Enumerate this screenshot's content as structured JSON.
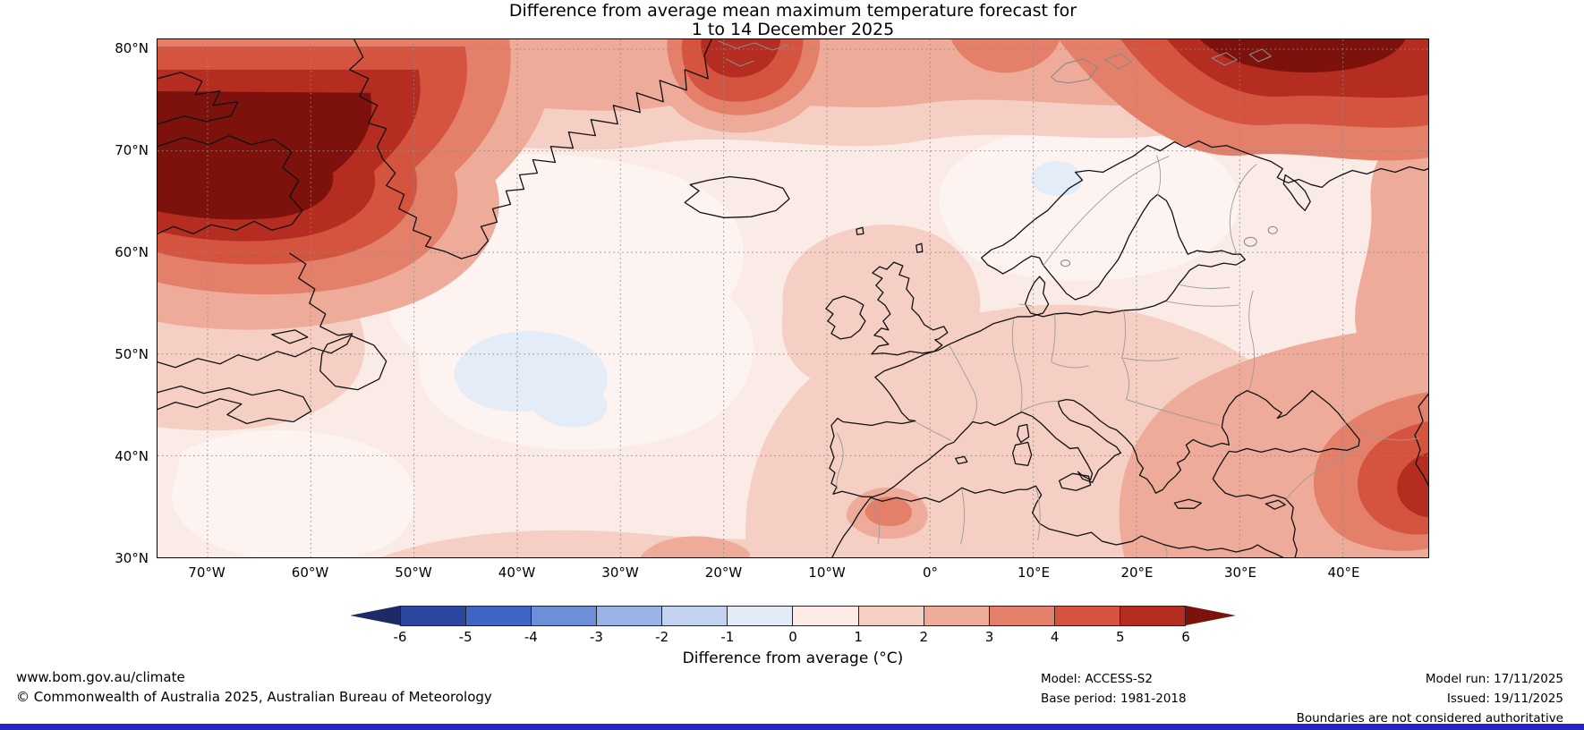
{
  "title": {
    "line1": "Difference from average mean maximum temperature forecast for",
    "line2": "1 to 14 December 2025"
  },
  "axes": {
    "lat": [
      "80°N",
      "70°N",
      "60°N",
      "50°N",
      "40°N",
      "30°N"
    ],
    "lon": [
      "70°W",
      "60°W",
      "50°W",
      "40°W",
      "30°W",
      "20°W",
      "10°W",
      "0°",
      "10°E",
      "20°E",
      "30°E",
      "40°E"
    ]
  },
  "colorbar": {
    "label": "Difference from average (°C)",
    "ticks": [
      "-6",
      "-5",
      "-4",
      "-3",
      "-2",
      "-1",
      "0",
      "1",
      "2",
      "3",
      "4",
      "5",
      "6"
    ],
    "left_arrow_color": "#1d2a66",
    "right_arrow_color": "#7d120c",
    "segment_colors": [
      "#2c47a0",
      "#3f66c4",
      "#6c8fd8",
      "#9ab3e6",
      "#c3d2f0",
      "#e4ebf8",
      "#fbeae5",
      "#f5cfc3",
      "#eeab9a",
      "#e4806a",
      "#d5543f",
      "#b52c20"
    ]
  },
  "footer": {
    "site": "www.bom.gov.au/climate",
    "copyright": "© Commonwealth of Australia 2025, Australian Bureau of Meteorology",
    "model": "Model: ACCESS-S2",
    "base_period": "Base period: 1981-2018",
    "model_run": "Model run: 17/11/2025",
    "issued": "Issued: 19/11/2025",
    "disclaimer": "Boundaries are not considered authoritative"
  },
  "chart_data": {
    "type": "heatmap",
    "subtype": "filled_contour_map",
    "title": "Difference from average mean maximum temperature forecast for 1 to 14 December 2025",
    "colorbar_label": "Difference from average (°C)",
    "contour_levels_c": [
      -6,
      -5,
      -4,
      -3,
      -2,
      -1,
      0,
      1,
      2,
      3,
      4,
      5,
      6
    ],
    "level_colors": [
      "#1d2a66",
      "#2c47a0",
      "#3f66c4",
      "#6c8fd8",
      "#9ab3e6",
      "#c3d2f0",
      "#e4ebf8",
      "#fbeae5",
      "#f5cfc3",
      "#eeab9a",
      "#e4806a",
      "#d5543f",
      "#b52c20",
      "#7d120c"
    ],
    "extent": {
      "lon_min_deg": -75,
      "lon_max_deg": 48,
      "lat_min_deg": 30,
      "lat_max_deg": 81
    },
    "lat_ticks_deg_n": [
      80,
      70,
      60,
      50,
      40,
      30
    ],
    "lon_ticks_deg": [
      -70,
      -60,
      -50,
      -40,
      -30,
      -20,
      -10,
      0,
      10,
      20,
      30,
      40
    ],
    "grid": true,
    "legend_position": "bottom",
    "regions": [
      {
        "region": "Labrador Sea / Baffin Island / Davis Strait",
        "anomaly_c": "+5 to more than +6"
      },
      {
        "region": "Arctic Ocean north of Scandinavia (Barents Sea)",
        "anomaly_c": "+4 to more than +6"
      },
      {
        "region": "Greenland Sea northeast of Greenland",
        "anomaly_c": "+3 to +6"
      },
      {
        "region": "Central North Atlantic near 45°N 40°W",
        "anomaly_c": "-1 to 0"
      },
      {
        "region": "Northern Sweden",
        "anomaly_c": "-1 to 0"
      },
      {
        "region": "Most of the North Atlantic, Greenland and western Europe",
        "anomaly_c": "0 to +2"
      },
      {
        "region": "Eastern Europe, Balkans, Turkey and eastern map edge",
        "anomaly_c": "+2 to +3"
      },
      {
        "region": "Caucasus / far southeast corner",
        "anomaly_c": "+3 to +5"
      },
      {
        "region": "Northern Spain",
        "anomaly_c": "+2 to +3"
      }
    ]
  }
}
